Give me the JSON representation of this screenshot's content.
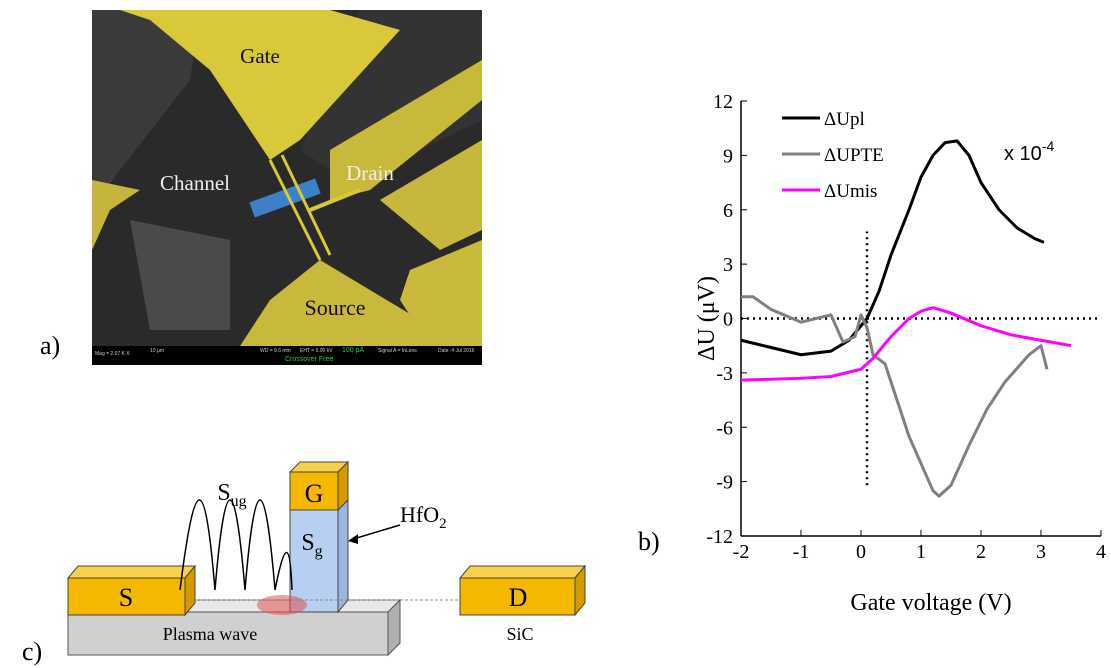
{
  "panel_a": {
    "label": "a)",
    "regions": {
      "gate": "Gate",
      "channel": "Channel",
      "drain": "Drain",
      "source": "Source"
    },
    "info_bar": [
      "Mag = 2.07 K X",
      "10 µm",
      "WD = 9.6 mm",
      "EHT = 5.00 kV",
      "100 pA",
      "Crossover Free",
      "Signal A = InLens",
      "Date :4 Jul 2016"
    ]
  },
  "panel_c": {
    "label": "c)",
    "source": "S",
    "drain": "D",
    "gate": "G",
    "wave": {
      "main": "S",
      "sub": "ug"
    },
    "gate_wave": {
      "main": "S",
      "sub": "g"
    },
    "dielectric": {
      "main": "HfO",
      "sub": "2"
    },
    "channel_label": "Plasma wave",
    "substrate": "SiC"
  },
  "chart_data": {
    "type": "line",
    "panel_label": "b)",
    "xlabel": "Gate voltage (V)",
    "ylabel": "ΔU (μV)",
    "annotation": "x 10",
    "annotation_exponent": "-4",
    "xlim": [
      -2,
      4
    ],
    "xticks": [
      -2,
      -1,
      0,
      1,
      2,
      3,
      4
    ],
    "ylim": [
      -12,
      12
    ],
    "yticks": [
      -12,
      -9,
      -6,
      -3,
      0,
      3,
      6,
      9,
      12
    ],
    "reference_lines": [
      {
        "x": [
          0.1,
          0.1
        ],
        "y": [
          -9.2,
          4.8
        ]
      },
      {
        "x": [
          -2,
          4
        ],
        "y": [
          0,
          0
        ]
      }
    ],
    "series": [
      {
        "name": "ΔUpl",
        "color": "#000000",
        "x": [
          -2,
          -1.5,
          -1,
          -0.5,
          -0.2,
          0,
          0.1,
          0.3,
          0.5,
          0.8,
          1.0,
          1.2,
          1.4,
          1.6,
          1.8,
          2.0,
          2.3,
          2.6,
          2.9,
          3.05
        ],
        "values": [
          -1.2,
          -1.6,
          -2.0,
          -1.8,
          -1.2,
          -0.4,
          0,
          1.5,
          3.5,
          6,
          7.8,
          9,
          9.7,
          9.8,
          9.0,
          7.5,
          6.0,
          5.0,
          4.4,
          4.2
        ]
      },
      {
        "name": "ΔUPTE",
        "color": "#808080",
        "x": [
          -2,
          -1.8,
          -1.5,
          -1,
          -0.5,
          -0.3,
          -0.1,
          0,
          0.1,
          0.2,
          0.4,
          0.6,
          0.8,
          1.0,
          1.2,
          1.3,
          1.5,
          1.8,
          2.1,
          2.4,
          2.8,
          3.0,
          3.1
        ],
        "values": [
          1.2,
          1.2,
          0.5,
          -0.2,
          0.2,
          -1.3,
          -1.0,
          0.2,
          -0.5,
          -2,
          -2.5,
          -4.5,
          -6.5,
          -8,
          -9.5,
          -9.8,
          -9.2,
          -7,
          -5,
          -3.5,
          -2.0,
          -1.5,
          -2.8
        ]
      },
      {
        "name": "ΔUmis",
        "color": "#ff00ff",
        "x": [
          -2,
          -1,
          -0.5,
          0,
          0.2,
          0.5,
          0.8,
          1.0,
          1.2,
          1.5,
          2.0,
          2.5,
          3.0,
          3.5
        ],
        "values": [
          -3.4,
          -3.3,
          -3.2,
          -2.8,
          -2.2,
          -1,
          0,
          0.4,
          0.6,
          0.3,
          -0.4,
          -0.9,
          -1.2,
          -1.5
        ]
      }
    ]
  }
}
